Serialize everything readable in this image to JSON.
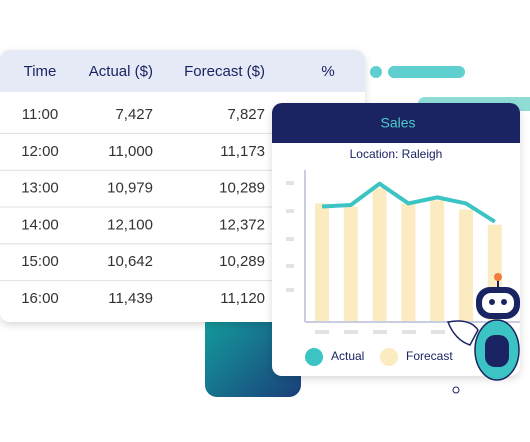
{
  "table": {
    "header": [
      "Time",
      "Actual ($)",
      "Forecast ($)",
      "%"
    ],
    "rows": [
      [
        "11:00",
        "7,427",
        "7,827"
      ],
      [
        "12:00",
        "11,000",
        "11,173"
      ],
      [
        "13:00",
        "10,979",
        "10,289"
      ],
      [
        "14:00",
        "12,100",
        "12,372"
      ],
      [
        "15:00",
        "10,642",
        "10,289"
      ],
      [
        "16:00",
        "11,439",
        "11,120"
      ]
    ]
  },
  "chart_data": {
    "type": "bar-line",
    "title": "Sales",
    "subtitle": "Location: Raleigh",
    "categories": [
      null,
      null,
      null,
      null,
      null,
      null,
      null
    ],
    "series": [
      {
        "name": "Actual",
        "color": "#3cc4c4",
        "type": "line",
        "values": [
          7.6,
          7.7,
          9.1,
          7.8,
          8.2,
          7.8,
          6.6
        ]
      },
      {
        "name": "Forecast",
        "color": "#fcebc0",
        "type": "bar",
        "values": [
          7.8,
          7.6,
          8.8,
          7.8,
          8.0,
          7.4,
          6.4
        ]
      }
    ],
    "ylim": [
      0,
      10
    ]
  }
}
